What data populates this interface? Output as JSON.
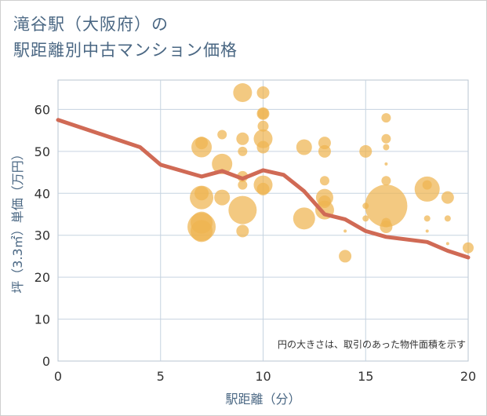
{
  "title_line1": "滝谷駅（大阪府）の",
  "title_line2": "駅距離別中古マンション価格",
  "chart_data": {
    "type": "scatter",
    "title": "滝谷駅（大阪府）の駅距離別中古マンション価格",
    "xlabel": "駅距離（分）",
    "ylabel": "坪（3.3㎡）単価（万円）",
    "xlim": [
      0,
      20
    ],
    "ylim": [
      0,
      67
    ],
    "xticks": [
      0,
      5,
      10,
      15,
      20
    ],
    "yticks": [
      0,
      10,
      20,
      30,
      40,
      50,
      60
    ],
    "grid": true,
    "note": "円の大きさは、取引のあった物件面積を示す",
    "bubble_color": "#efb451",
    "line_color": "#d06a55",
    "points": [
      {
        "x": 7,
        "y": 51,
        "s": 13
      },
      {
        "x": 7,
        "y": 52,
        "s": 8
      },
      {
        "x": 7,
        "y": 40,
        "s": 9
      },
      {
        "x": 7,
        "y": 39,
        "s": 15
      },
      {
        "x": 7,
        "y": 33,
        "s": 14
      },
      {
        "x": 7,
        "y": 32,
        "s": 18
      },
      {
        "x": 7,
        "y": 31,
        "s": 14
      },
      {
        "x": 8,
        "y": 54,
        "s": 6
      },
      {
        "x": 8,
        "y": 47,
        "s": 13
      },
      {
        "x": 8,
        "y": 39,
        "s": 10
      },
      {
        "x": 9,
        "y": 64,
        "s": 12
      },
      {
        "x": 9,
        "y": 53,
        "s": 8
      },
      {
        "x": 9,
        "y": 50,
        "s": 6
      },
      {
        "x": 9,
        "y": 44,
        "s": 7
      },
      {
        "x": 9,
        "y": 42,
        "s": 6
      },
      {
        "x": 9,
        "y": 36,
        "s": 18
      },
      {
        "x": 9,
        "y": 31,
        "s": 8
      },
      {
        "x": 10,
        "y": 64,
        "s": 8
      },
      {
        "x": 10,
        "y": 59,
        "s": 8
      },
      {
        "x": 10,
        "y": 59,
        "s": 7
      },
      {
        "x": 10,
        "y": 56,
        "s": 7
      },
      {
        "x": 10,
        "y": 53,
        "s": 12
      },
      {
        "x": 10,
        "y": 51,
        "s": 8
      },
      {
        "x": 10,
        "y": 42,
        "s": 12
      },
      {
        "x": 10,
        "y": 41,
        "s": 8
      },
      {
        "x": 12,
        "y": 51,
        "s": 10
      },
      {
        "x": 12,
        "y": 34,
        "s": 14
      },
      {
        "x": 13,
        "y": 52,
        "s": 8
      },
      {
        "x": 13,
        "y": 50,
        "s": 8
      },
      {
        "x": 13,
        "y": 43,
        "s": 6
      },
      {
        "x": 13,
        "y": 39,
        "s": 11
      },
      {
        "x": 13,
        "y": 38,
        "s": 8
      },
      {
        "x": 13,
        "y": 36,
        "s": 12
      },
      {
        "x": 14,
        "y": 31,
        "s": 2
      },
      {
        "x": 14,
        "y": 25,
        "s": 8
      },
      {
        "x": 15,
        "y": 50,
        "s": 8
      },
      {
        "x": 15,
        "y": 37,
        "s": 4
      },
      {
        "x": 15,
        "y": 34,
        "s": 4
      },
      {
        "x": 16,
        "y": 58,
        "s": 6
      },
      {
        "x": 16,
        "y": 53,
        "s": 6
      },
      {
        "x": 16,
        "y": 51,
        "s": 4
      },
      {
        "x": 16,
        "y": 47,
        "s": 2
      },
      {
        "x": 16,
        "y": 43,
        "s": 6
      },
      {
        "x": 16,
        "y": 37,
        "s": 27
      },
      {
        "x": 16,
        "y": 33,
        "s": 6
      },
      {
        "x": 16,
        "y": 32,
        "s": 8
      },
      {
        "x": 18,
        "y": 42,
        "s": 6
      },
      {
        "x": 18,
        "y": 41,
        "s": 16
      },
      {
        "x": 18,
        "y": 34,
        "s": 4
      },
      {
        "x": 18,
        "y": 31,
        "s": 2
      },
      {
        "x": 19,
        "y": 39,
        "s": 8
      },
      {
        "x": 19,
        "y": 34,
        "s": 4
      },
      {
        "x": 19,
        "y": 28,
        "s": 2
      },
      {
        "x": 20,
        "y": 27,
        "s": 7
      }
    ],
    "line": {
      "x": [
        0,
        4,
        5,
        7,
        8,
        9,
        10,
        11,
        12,
        13,
        14,
        15,
        16,
        18,
        19,
        20
      ],
      "y": [
        57.5,
        51,
        46.8,
        44,
        45.3,
        43.5,
        45.5,
        44.4,
        40.5,
        35,
        33.8,
        31,
        29.6,
        28.4,
        26.3,
        24.7
      ]
    }
  }
}
